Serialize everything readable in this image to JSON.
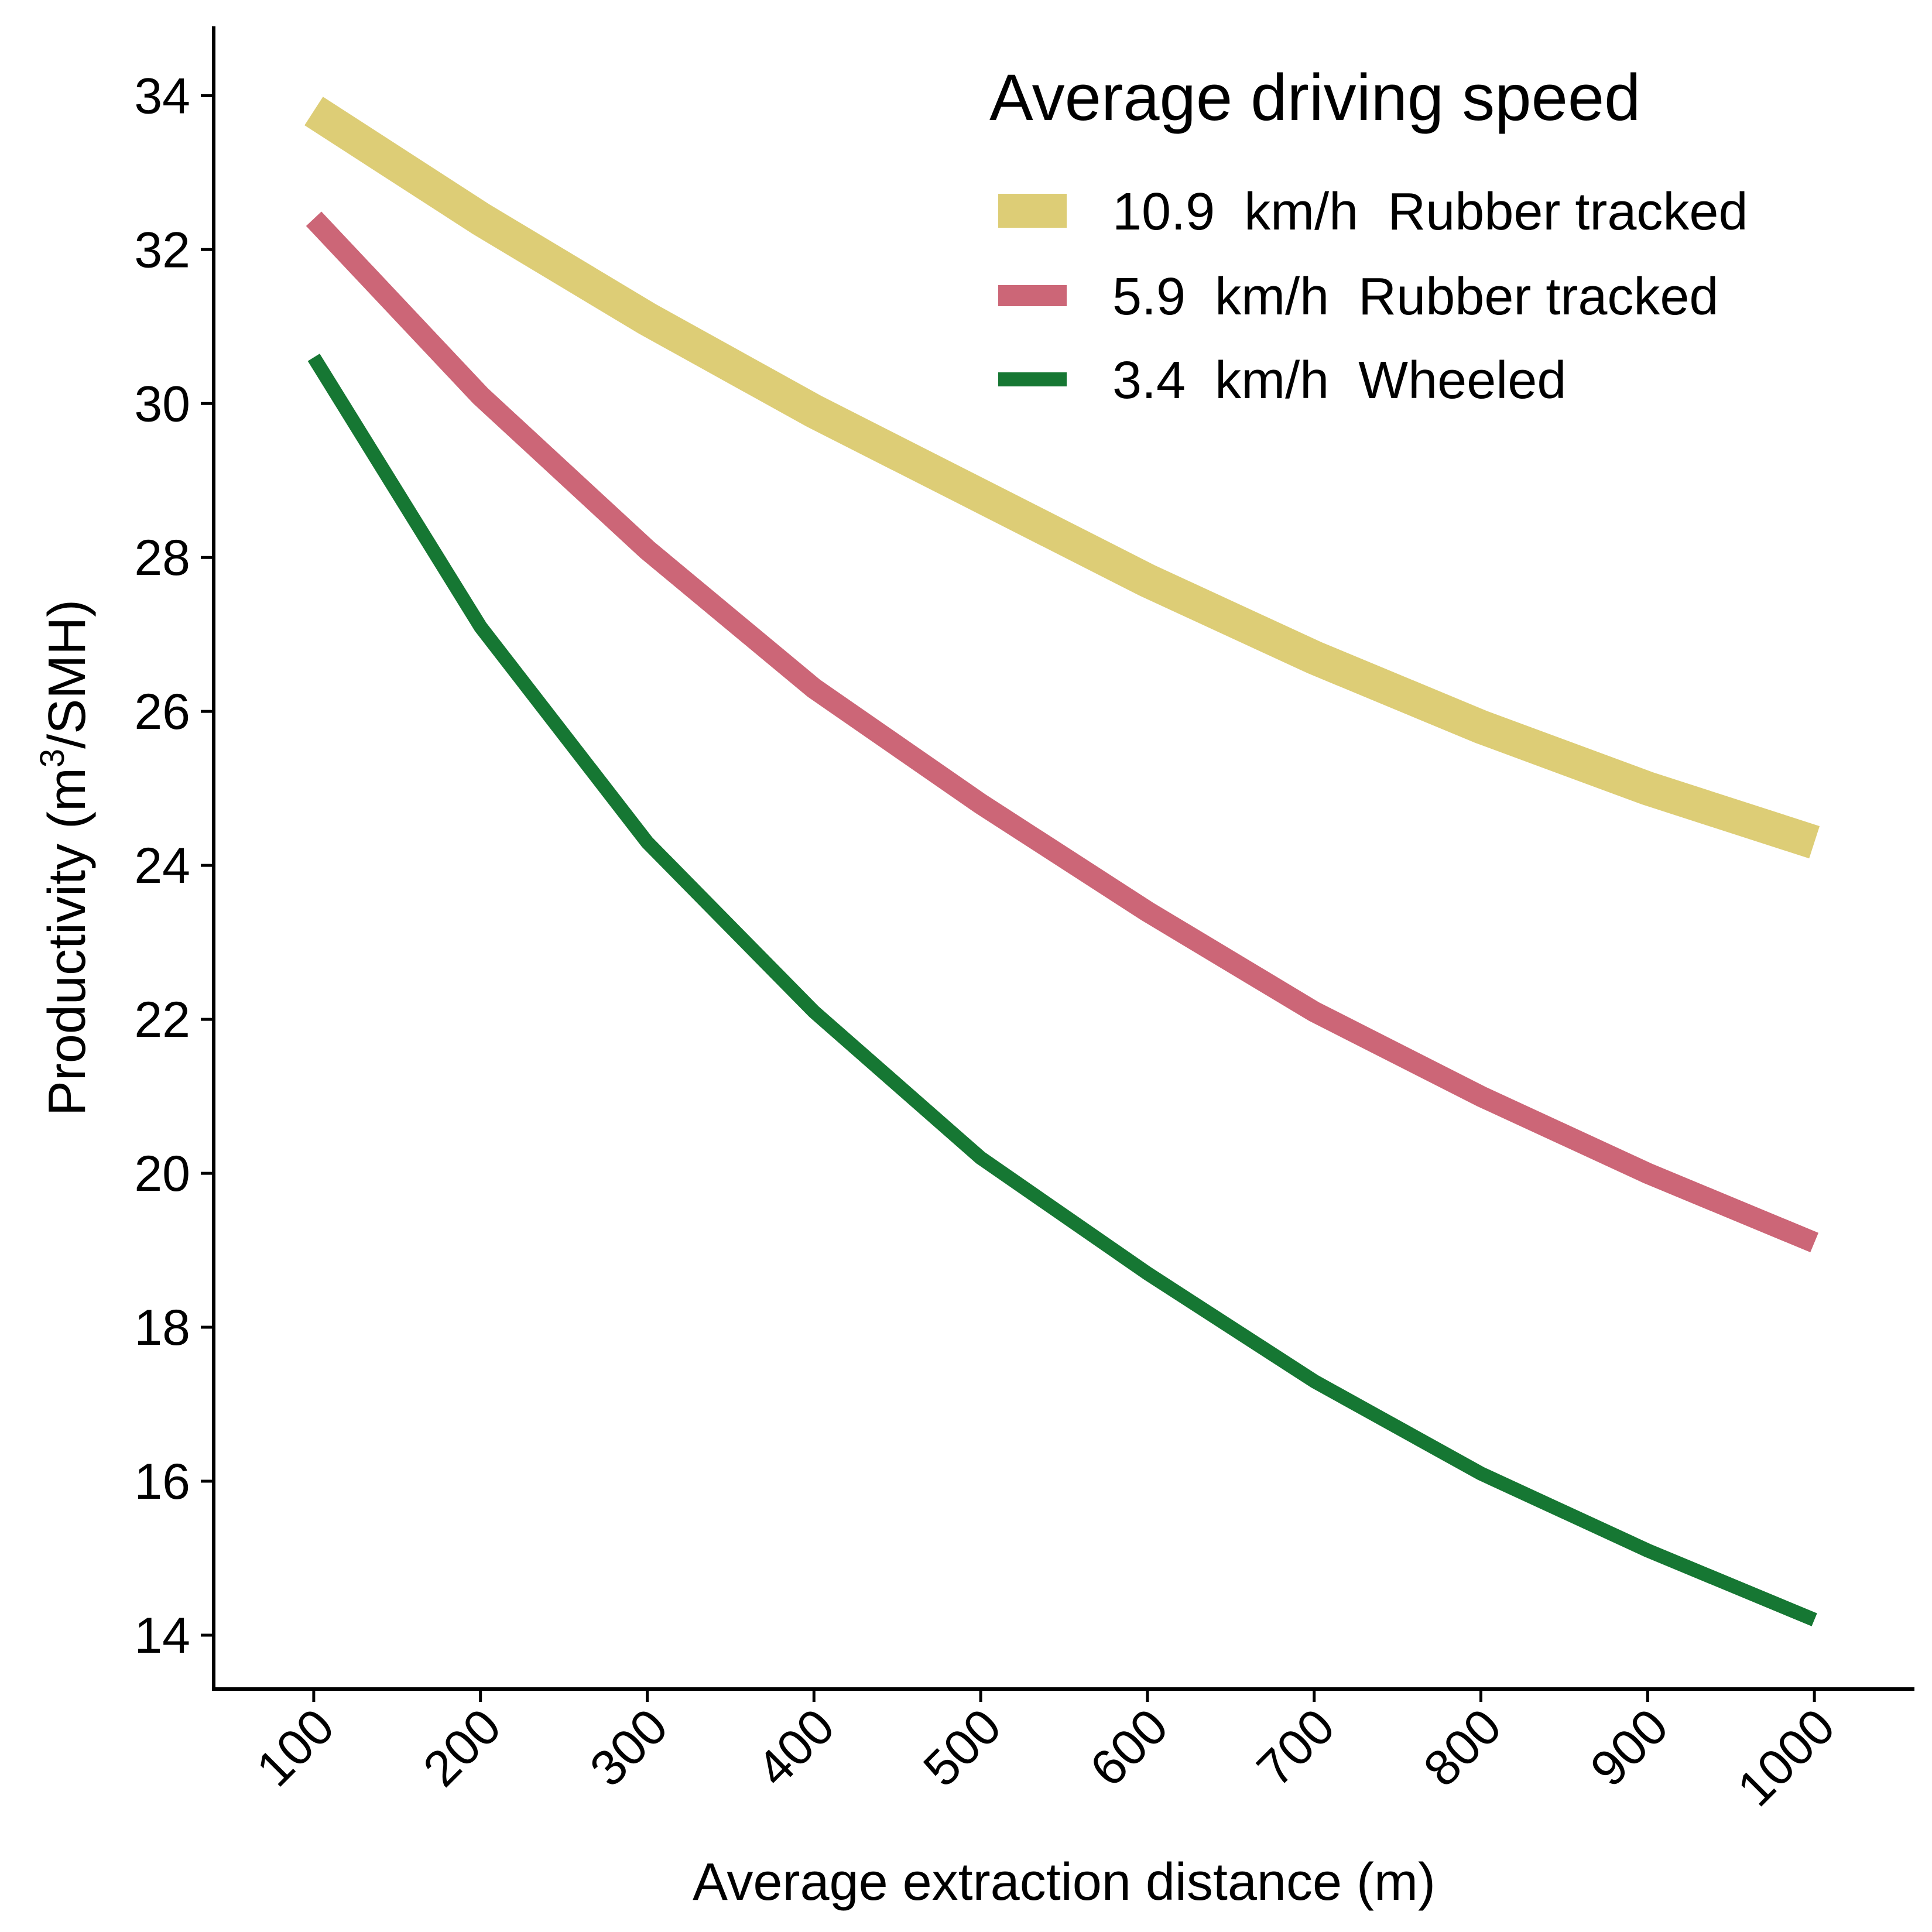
{
  "chart_data": {
    "type": "line",
    "title": "",
    "xlabel": "Average extraction distance (m)",
    "ylabel": {
      "prefix": "Productivity (m",
      "superscript": "3",
      "suffix": "/SMH)"
    },
    "x": [
      100,
      200,
      300,
      400,
      500,
      600,
      700,
      800,
      900,
      1000
    ],
    "xlim": [
      40,
      1060
    ],
    "ylim": [
      13.3,
      34.9
    ],
    "x_ticks": [
      100,
      200,
      300,
      400,
      500,
      600,
      700,
      800,
      900,
      1000
    ],
    "y_ticks": [
      14,
      16,
      18,
      20,
      22,
      24,
      26,
      28,
      30,
      32,
      34
    ],
    "grid": false,
    "legend": {
      "title": "Average driving speed",
      "position": "top-right"
    },
    "series": [
      {
        "name": "10.9  km/h  Rubber tracked",
        "color": "#DDCD76",
        "values": [
          33.8,
          32.4,
          31.1,
          29.9,
          28.8,
          27.7,
          26.7,
          25.8,
          25.0,
          24.3
        ]
      },
      {
        "name": "5.9  km/h  Rubber tracked",
        "color": "#CC6677",
        "values": [
          32.4,
          30.1,
          28.1,
          26.3,
          24.8,
          23.4,
          22.1,
          21.0,
          20.0,
          19.1
        ]
      },
      {
        "name": "3.4  km/h  Wheeled",
        "color": "#167733",
        "values": [
          30.6,
          27.1,
          24.3,
          22.1,
          20.2,
          18.7,
          17.3,
          16.1,
          15.1,
          14.2
        ]
      }
    ]
  }
}
